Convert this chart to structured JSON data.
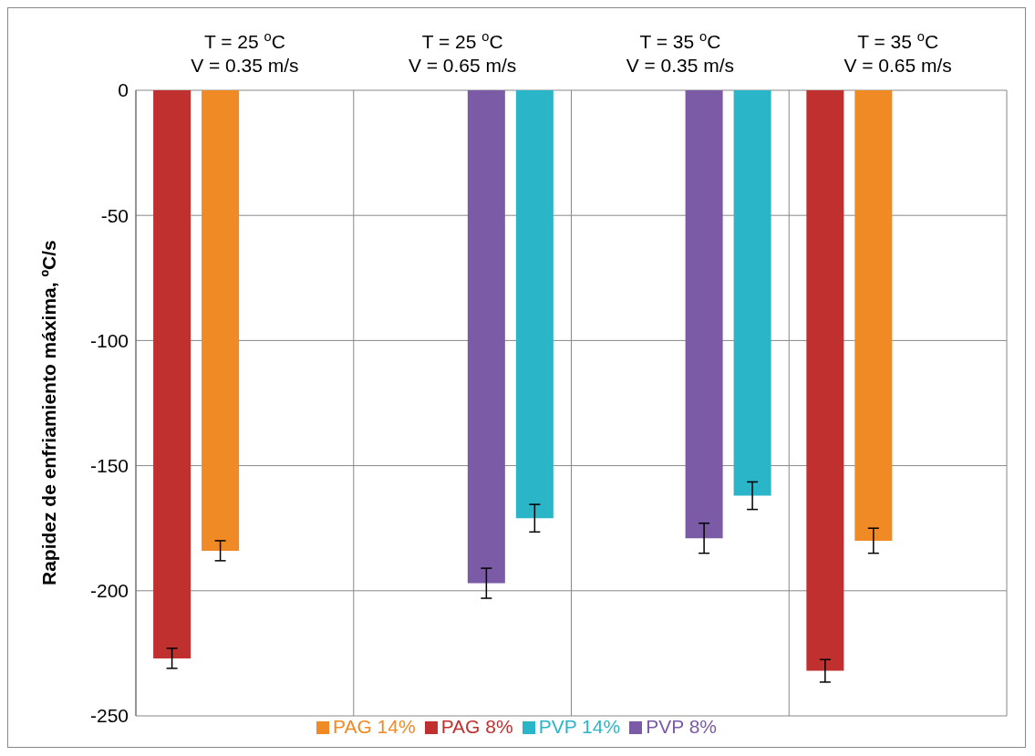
{
  "chart_data": {
    "type": "bar",
    "categories": [
      "T = 25 $^{o}$C\nV = 0.35 m/s",
      "T = 25 $^{o}$C\nV = 0.65 m/s",
      "T = 35 $^{o}$C\nV = 0.35 m/s",
      "T = 35 $^{o}$C\nV = 0.65 m/s"
    ],
    "ylabel": "Rapidez de enfriamiento máxima, ºC/s",
    "series": [
      {
        "name": "PAG 8%",
        "color": "#c0302f",
        "values": [
          -227,
          null,
          null,
          -232
        ],
        "errors": [
          4,
          null,
          null,
          4.5
        ]
      },
      {
        "name": "PAG 14%",
        "color": "#f08a24",
        "values": [
          -184,
          null,
          null,
          -180
        ],
        "errors": [
          4,
          null,
          null,
          5
        ]
      },
      {
        "name": "PVP 8%",
        "color": "#7b5aa6",
        "values": [
          null,
          -197,
          -179,
          null
        ],
        "errors": [
          null,
          6,
          6,
          null
        ]
      },
      {
        "name": "PVP 14%",
        "color": "#2bb5c8",
        "values": [
          null,
          -171,
          -162,
          null
        ],
        "errors": [
          null,
          5.5,
          5.5,
          null
        ]
      }
    ],
    "ylim": [
      -250,
      0
    ],
    "yticks": [
      0,
      -50,
      -100,
      -150,
      -200,
      -250
    ],
    "grid": true,
    "legend": "bottom"
  }
}
